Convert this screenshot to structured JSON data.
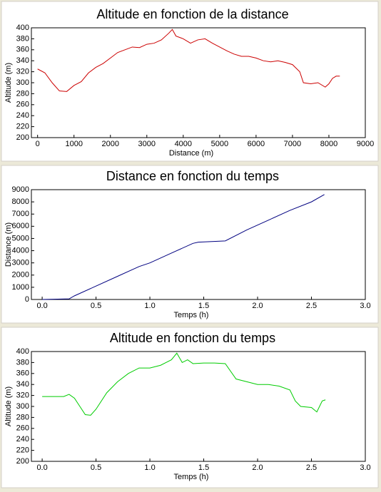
{
  "chart_data": [
    {
      "type": "line",
      "title": "Altitude en fonction de la distance",
      "xlabel": "Distance (m)",
      "ylabel": "Altitude (m)",
      "xlim": [
        -170,
        9000
      ],
      "xticks": [
        0,
        1000,
        2000,
        3000,
        4000,
        5000,
        6000,
        7000,
        8000,
        9000
      ],
      "ylim": [
        200,
        400
      ],
      "yticks": [
        200,
        220,
        240,
        260,
        280,
        300,
        320,
        340,
        360,
        380,
        400
      ],
      "series": [
        {
          "color": "#cc0000",
          "x": [
            0,
            200,
            400,
            600,
            800,
            1000,
            1200,
            1400,
            1600,
            1800,
            2000,
            2200,
            2400,
            2600,
            2800,
            3000,
            3200,
            3400,
            3600,
            3700,
            3800,
            4000,
            4200,
            4400,
            4600,
            4800,
            5000,
            5200,
            5400,
            5600,
            5800,
            6000,
            6200,
            6400,
            6600,
            6800,
            7000,
            7200,
            7300,
            7500,
            7700,
            7900,
            8000,
            8100,
            8200,
            8300
          ],
          "values": [
            325,
            318,
            300,
            285,
            284,
            295,
            302,
            318,
            328,
            335,
            345,
            355,
            360,
            365,
            364,
            370,
            372,
            378,
            390,
            397,
            385,
            380,
            372,
            378,
            380,
            372,
            365,
            358,
            352,
            348,
            348,
            345,
            340,
            338,
            340,
            337,
            333,
            320,
            300,
            298,
            300,
            292,
            298,
            308,
            312,
            312
          ]
        }
      ]
    },
    {
      "type": "line",
      "title": "Distance en fonction du temps",
      "xlabel": "Temps (h)",
      "ylabel": "Distance (m)",
      "xlim": [
        -0.1,
        3.0
      ],
      "xticks": [
        {
          "value": 0,
          "label": "0.0"
        },
        0.5,
        {
          "value": 1,
          "label": "1.0"
        },
        1.5,
        {
          "value": 2,
          "label": "2.0"
        },
        2.5,
        {
          "value": 3,
          "label": "3.0"
        }
      ],
      "ylim": [
        0,
        9000
      ],
      "yticks": [
        0,
        1000,
        2000,
        3000,
        4000,
        5000,
        6000,
        7000,
        8000,
        9000
      ],
      "series": [
        {
          "color": "#000080",
          "x": [
            0,
            0.25,
            0.3,
            0.5,
            0.7,
            0.9,
            1.0,
            1.2,
            1.4,
            1.45,
            1.7,
            1.9,
            2.1,
            2.3,
            2.5,
            2.62
          ],
          "values": [
            0,
            50,
            300,
            1100,
            1900,
            2700,
            3000,
            3800,
            4600,
            4700,
            4800,
            5700,
            6500,
            7300,
            8000,
            8600
          ]
        }
      ]
    },
    {
      "type": "line",
      "title": "Altitude en fonction du temps",
      "xlabel": "Temps (h)",
      "ylabel": "Altitude (m)",
      "xlim": [
        -0.1,
        3.0
      ],
      "xticks": [
        {
          "value": 0,
          "label": "0.0"
        },
        0.5,
        {
          "value": 1,
          "label": "1.0"
        },
        1.5,
        {
          "value": 2,
          "label": "2.0"
        },
        2.5,
        {
          "value": 3,
          "label": "3.0"
        }
      ],
      "ylim": [
        200,
        400
      ],
      "yticks": [
        200,
        220,
        240,
        260,
        280,
        300,
        320,
        340,
        360,
        380,
        400
      ],
      "series": [
        {
          "color": "#00cc00",
          "x": [
            0,
            0.2,
            0.25,
            0.3,
            0.35,
            0.4,
            0.45,
            0.5,
            0.6,
            0.7,
            0.8,
            0.9,
            1.0,
            1.1,
            1.2,
            1.25,
            1.3,
            1.35,
            1.4,
            1.5,
            1.6,
            1.7,
            1.8,
            1.9,
            2.0,
            2.1,
            2.2,
            2.3,
            2.35,
            2.4,
            2.5,
            2.55,
            2.6,
            2.63
          ],
          "values": [
            318,
            318,
            322,
            315,
            300,
            285,
            284,
            295,
            325,
            345,
            360,
            370,
            370,
            375,
            385,
            397,
            380,
            385,
            378,
            379,
            379,
            378,
            350,
            345,
            340,
            340,
            337,
            330,
            310,
            300,
            298,
            290,
            310,
            312
          ]
        }
      ]
    }
  ]
}
